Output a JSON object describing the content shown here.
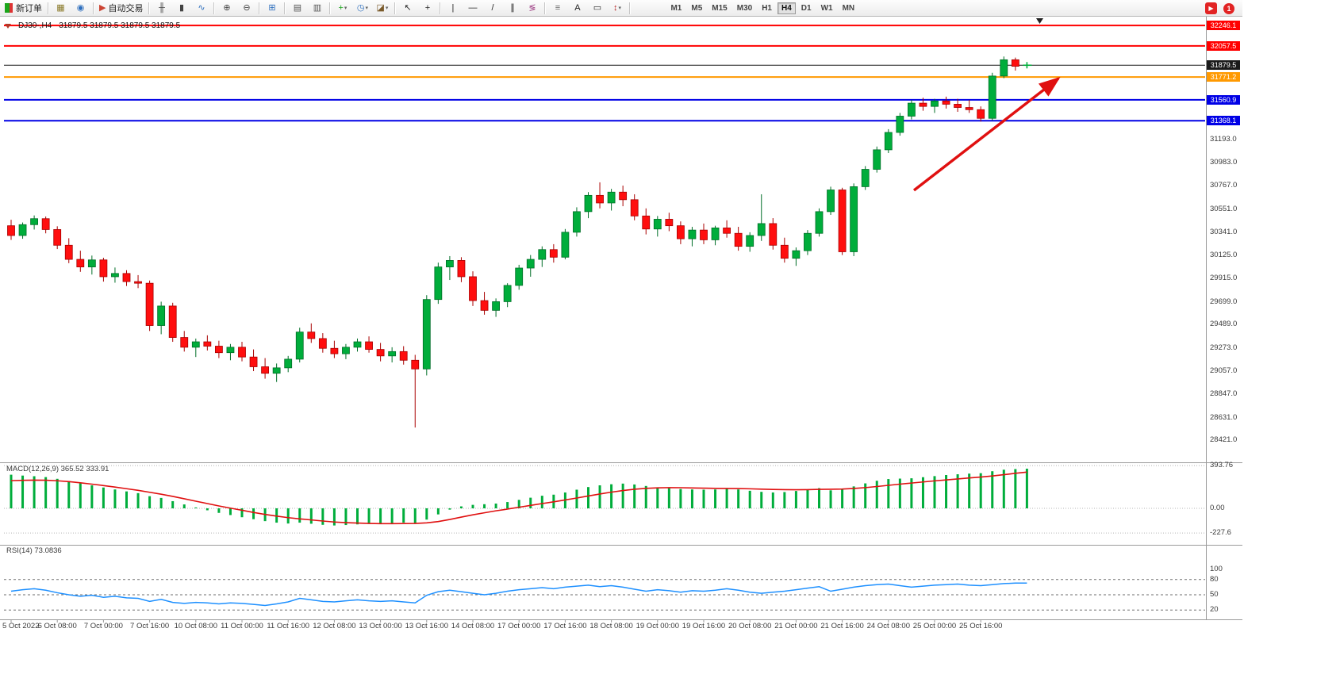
{
  "toolbar": {
    "groups": [
      {
        "items": [
          {
            "name": "new-order",
            "kind": "neworder",
            "label": "新订单"
          }
        ]
      },
      {
        "items": [
          {
            "name": "charts-grid",
            "glyph": "▦",
            "color": "#8a7a2a"
          },
          {
            "name": "alerts",
            "glyph": "◉",
            "color": "#2e6fbe"
          }
        ]
      },
      {
        "items": [
          {
            "name": "autotrade",
            "glyph": "▶",
            "color": "#cc4433",
            "label": "自动交易"
          }
        ]
      },
      {
        "items": [
          {
            "name": "bar-chart",
            "glyph": "╫",
            "color": "#444444"
          },
          {
            "name": "candlestick-chart",
            "glyph": "▮",
            "color": "#444444"
          },
          {
            "name": "line-chart",
            "glyph": "∿",
            "color": "#2e6fbe"
          }
        ]
      },
      {
        "items": [
          {
            "name": "zoom-in",
            "glyph": "⊕",
            "color": "#444444"
          },
          {
            "name": "zoom-out",
            "glyph": "⊖",
            "color": "#444444"
          }
        ]
      },
      {
        "items": [
          {
            "name": "tile-windows",
            "glyph": "⊞",
            "color": "#2e6fbe"
          }
        ]
      },
      {
        "items": [
          {
            "name": "auto-arrange",
            "glyph": "▤",
            "color": "#555555"
          },
          {
            "name": "track-chart",
            "glyph": "▥",
            "color": "#555555"
          }
        ]
      },
      {
        "items": [
          {
            "name": "indicators",
            "glyph": "+",
            "color": "#1ba51b",
            "dropdown": true
          },
          {
            "name": "periods",
            "glyph": "◷",
            "color": "#2e6fbe",
            "dropdown": true
          },
          {
            "name": "templates",
            "glyph": "◪",
            "color": "#7a5a2a",
            "dropdown": true
          }
        ]
      },
      {
        "items": [
          {
            "name": "cursor",
            "glyph": "↖",
            "color": "#222222"
          },
          {
            "name": "crosshair",
            "glyph": "+",
            "color": "#222222"
          }
        ]
      },
      {
        "items": [
          {
            "name": "vertical-line",
            "glyph": "|",
            "color": "#222222"
          },
          {
            "name": "horizontal-line",
            "glyph": "—",
            "color": "#222222"
          },
          {
            "name": "trendline",
            "glyph": "/",
            "color": "#222222"
          },
          {
            "name": "equidistant-channel",
            "glyph": "∥",
            "color": "#222222"
          },
          {
            "name": "fibonacci",
            "glyph": "≶",
            "color": "#a04488"
          }
        ]
      },
      {
        "items": [
          {
            "name": "shapes",
            "glyph": "≡",
            "color": "#666666"
          },
          {
            "name": "text",
            "glyph": "A",
            "color": "#222222"
          },
          {
            "name": "text-label",
            "glyph": "▭",
            "color": "#222222"
          },
          {
            "name": "arrows",
            "glyph": "↕",
            "color": "#b22222",
            "dropdown": true
          }
        ]
      }
    ],
    "timeframes": [
      {
        "label": "M1"
      },
      {
        "label": "M5"
      },
      {
        "label": "M15"
      },
      {
        "label": "M30"
      },
      {
        "label": "H1"
      },
      {
        "label": "H4",
        "active": true
      },
      {
        "label": "D1"
      },
      {
        "label": "W1"
      },
      {
        "label": "MN"
      }
    ],
    "right": {
      "promo_glyph": "▶",
      "notification_count": "1"
    }
  },
  "header": {
    "symbol_period": "DJ30-,H4",
    "ohlc": "31879.5 31879.5 31879.5 31879.5"
  },
  "chart_data": {
    "type": "candlestick",
    "symbol": "DJ30-",
    "period": "H4",
    "y_axis": {
      "badges": [
        {
          "value": "32246.1",
          "price": 32246.1,
          "color": "#ff0000"
        },
        {
          "value": "32057.5",
          "price": 32057.5,
          "color": "#ff0000"
        },
        {
          "value": "31879.5",
          "price": 31879.5,
          "color": "#1a1a1a"
        },
        {
          "value": "31771.2",
          "price": 31771.2,
          "color": "#ff9900"
        },
        {
          "value": "31560.9",
          "price": 31560.9,
          "color": "#0000e6"
        },
        {
          "value": "31368.1",
          "price": 31368.1,
          "color": "#0000e6"
        }
      ],
      "ticks": [
        "31193.0",
        "30983.0",
        "30767.0",
        "30551.0",
        "30341.0",
        "30125.0",
        "29915.0",
        "29699.0",
        "29489.0",
        "29273.0",
        "29057.0",
        "28847.0",
        "28631.0",
        "28421.0"
      ]
    },
    "hlines": [
      {
        "price": 32246.1,
        "color": "#ff0000",
        "w": 2
      },
      {
        "price": 32057.5,
        "color": "#ff0000",
        "w": 2
      },
      {
        "price": 31879.5,
        "color": "#1a1a1a",
        "w": 1
      },
      {
        "price": 31771.2,
        "color": "#ff9900",
        "w": 2
      },
      {
        "price": 31560.9,
        "color": "#0000e6",
        "w": 2
      },
      {
        "price": 31368.1,
        "color": "#0000e6",
        "w": 2
      }
    ],
    "x_labels": [
      "5 Oct 2022",
      "6 Oct 08:00",
      "7 Oct 00:00",
      "7 Oct 16:00",
      "10 Oct 08:00",
      "11 Oct 00:00",
      "11 Oct 16:00",
      "12 Oct 08:00",
      "13 Oct 00:00",
      "13 Oct 16:00",
      "14 Oct 08:00",
      "17 Oct 00:00",
      "17 Oct 16:00",
      "18 Oct 08:00",
      "19 Oct 00:00",
      "19 Oct 16:00",
      "20 Oct 08:00",
      "21 Oct 00:00",
      "21 Oct 16:00",
      "24 Oct 08:00",
      "25 Oct 00:00",
      "25 Oct 16:00"
    ],
    "candles": [
      [
        30400,
        30455,
        30270,
        30310
      ],
      [
        30310,
        30430,
        30280,
        30410
      ],
      [
        30410,
        30495,
        30365,
        30465
      ],
      [
        30465,
        30485,
        30330,
        30365
      ],
      [
        30365,
        30395,
        30185,
        30220
      ],
      [
        30220,
        30285,
        30055,
        30090
      ],
      [
        30090,
        30170,
        29975,
        30020
      ],
      [
        30020,
        30125,
        29950,
        30085
      ],
      [
        30085,
        30105,
        29885,
        29930
      ],
      [
        29930,
        30015,
        29875,
        29960
      ],
      [
        29960,
        29990,
        29845,
        29885
      ],
      [
        29885,
        29945,
        29825,
        29870
      ],
      [
        29870,
        29895,
        29430,
        29480
      ],
      [
        29480,
        29700,
        29400,
        29660
      ],
      [
        29660,
        29690,
        29330,
        29370
      ],
      [
        29370,
        29430,
        29240,
        29280
      ],
      [
        29280,
        29360,
        29190,
        29330
      ],
      [
        29330,
        29390,
        29250,
        29290
      ],
      [
        29290,
        29340,
        29180,
        29230
      ],
      [
        29230,
        29310,
        29160,
        29280
      ],
      [
        29280,
        29330,
        29150,
        29190
      ],
      [
        29190,
        29260,
        29060,
        29100
      ],
      [
        29100,
        29180,
        28990,
        29040
      ],
      [
        29040,
        29130,
        28960,
        29090
      ],
      [
        29090,
        29200,
        29050,
        29170
      ],
      [
        29170,
        29460,
        29140,
        29420
      ],
      [
        29420,
        29500,
        29320,
        29360
      ],
      [
        29360,
        29410,
        29230,
        29270
      ],
      [
        29270,
        29340,
        29180,
        29220
      ],
      [
        29220,
        29310,
        29170,
        29280
      ],
      [
        29280,
        29360,
        29240,
        29330
      ],
      [
        29330,
        29380,
        29230,
        29260
      ],
      [
        29260,
        29320,
        29150,
        29200
      ],
      [
        29200,
        29280,
        29140,
        29240
      ],
      [
        29240,
        29290,
        29120,
        29160
      ],
      [
        29160,
        29210,
        28540,
        29080
      ],
      [
        29080,
        29760,
        29020,
        29720
      ],
      [
        29720,
        30060,
        29680,
        30020
      ],
      [
        30020,
        30120,
        29900,
        30080
      ],
      [
        30080,
        30110,
        29880,
        29930
      ],
      [
        29930,
        29980,
        29660,
        29710
      ],
      [
        29710,
        29790,
        29580,
        29620
      ],
      [
        29620,
        29730,
        29560,
        29700
      ],
      [
        29700,
        29870,
        29650,
        29850
      ],
      [
        29850,
        30040,
        29810,
        30010
      ],
      [
        30010,
        30130,
        29930,
        30090
      ],
      [
        30090,
        30210,
        30020,
        30180
      ],
      [
        30180,
        30230,
        30060,
        30110
      ],
      [
        30110,
        30370,
        30090,
        30340
      ],
      [
        30340,
        30570,
        30300,
        30530
      ],
      [
        30530,
        30710,
        30470,
        30680
      ],
      [
        30680,
        30800,
        30560,
        30610
      ],
      [
        30610,
        30740,
        30540,
        30710
      ],
      [
        30710,
        30770,
        30580,
        30640
      ],
      [
        30640,
        30690,
        30450,
        30490
      ],
      [
        30490,
        30560,
        30320,
        30370
      ],
      [
        30370,
        30490,
        30300,
        30460
      ],
      [
        30460,
        30520,
        30350,
        30400
      ],
      [
        30400,
        30440,
        30230,
        30280
      ],
      [
        30280,
        30390,
        30210,
        30360
      ],
      [
        30360,
        30420,
        30230,
        30270
      ],
      [
        30270,
        30400,
        30220,
        30380
      ],
      [
        30380,
        30450,
        30290,
        30330
      ],
      [
        30330,
        30390,
        30170,
        30210
      ],
      [
        30210,
        30340,
        30160,
        30310
      ],
      [
        30310,
        30690,
        30260,
        30420
      ],
      [
        30420,
        30470,
        30180,
        30220
      ],
      [
        30220,
        30290,
        30060,
        30100
      ],
      [
        30100,
        30200,
        30030,
        30170
      ],
      [
        30170,
        30360,
        30130,
        30330
      ],
      [
        30330,
        30560,
        30300,
        30530
      ],
      [
        30530,
        30760,
        30500,
        30730
      ],
      [
        30730,
        30750,
        30130,
        30160
      ],
      [
        30160,
        30790,
        30120,
        30760
      ],
      [
        30760,
        30950,
        30730,
        30920
      ],
      [
        30920,
        31130,
        30890,
        31100
      ],
      [
        31100,
        31290,
        31070,
        31260
      ],
      [
        31260,
        31440,
        31230,
        31410
      ],
      [
        31410,
        31560,
        31380,
        31530
      ],
      [
        31530,
        31580,
        31460,
        31500
      ],
      [
        31500,
        31570,
        31440,
        31550
      ],
      [
        31550,
        31590,
        31480,
        31520
      ],
      [
        31520,
        31570,
        31450,
        31490
      ],
      [
        31490,
        31560,
        31440,
        31470
      ],
      [
        31470,
        31500,
        31360,
        31390
      ],
      [
        31390,
        31810,
        31370,
        31780
      ],
      [
        31780,
        31960,
        31760,
        31930
      ],
      [
        31930,
        31950,
        31830,
        31870
      ],
      [
        31879.5,
        31879.5,
        31879.5,
        31879.5
      ]
    ],
    "macd": {
      "label": "MACD(12,26,9) 365.52 333.91",
      "axis": [
        {
          "t": "393.76",
          "v": 393.76
        },
        {
          "t": "0.00",
          "v": 0
        },
        {
          "t": "-227.6",
          "v": -227.6
        }
      ],
      "histogram": [
        310,
        302,
        296,
        288,
        272,
        252,
        230,
        212,
        192,
        174,
        156,
        140,
        112,
        96,
        66,
        36,
        8,
        -18,
        -42,
        -62,
        -82,
        -100,
        -118,
        -132,
        -140,
        -132,
        -142,
        -152,
        -158,
        -154,
        -148,
        -144,
        -142,
        -136,
        -132,
        -140,
        -104,
        -56,
        -12,
        18,
        32,
        38,
        44,
        58,
        78,
        98,
        116,
        126,
        146,
        172,
        196,
        212,
        222,
        228,
        220,
        206,
        194,
        186,
        178,
        174,
        172,
        174,
        180,
        174,
        162,
        152,
        146,
        150,
        160,
        172,
        186,
        166,
        178,
        202,
        230,
        254,
        270,
        274,
        277,
        287,
        297,
        307,
        314,
        320,
        324,
        342,
        356,
        362,
        365.52
      ],
      "signal": [
        255,
        258,
        260,
        259,
        254,
        246,
        235,
        223,
        210,
        196,
        181,
        166,
        148,
        130,
        110,
        88,
        66,
        44,
        22,
        2,
        -18,
        -38,
        -56,
        -72,
        -86,
        -97,
        -107,
        -117,
        -126,
        -132,
        -136,
        -139,
        -141,
        -141,
        -140,
        -139,
        -134,
        -122,
        -103,
        -81,
        -60,
        -41,
        -23,
        -7,
        10,
        27,
        44,
        60,
        77,
        95,
        114,
        132,
        149,
        164,
        176,
        184,
        189,
        191,
        190,
        188,
        186,
        184,
        183,
        182,
        180,
        177,
        174,
        172,
        171,
        172,
        175,
        176,
        178,
        183,
        191,
        201,
        212,
        223,
        233,
        243,
        253,
        262,
        271,
        280,
        288,
        298,
        310,
        323,
        333.91
      ]
    },
    "rsi": {
      "label": "RSI(14) 73.0836",
      "levels": [
        {
          "t": "100",
          "v": 100
        },
        {
          "t": "80",
          "v": 80
        },
        {
          "t": "50",
          "v": 50
        },
        {
          "t": "20",
          "v": 20
        }
      ],
      "dashed": [
        80,
        50,
        20
      ],
      "values": [
        57,
        60,
        62,
        59,
        54,
        50,
        47,
        49,
        45,
        47,
        44,
        43,
        37,
        41,
        35,
        33,
        35,
        34,
        32,
        34,
        33,
        31,
        29,
        32,
        36,
        43,
        40,
        37,
        36,
        38,
        40,
        38,
        37,
        38,
        36,
        34,
        49,
        56,
        59,
        56,
        53,
        50,
        53,
        57,
        60,
        62,
        64,
        62,
        65,
        67,
        69,
        66,
        68,
        65,
        61,
        57,
        60,
        58,
        55,
        58,
        57,
        59,
        62,
        59,
        55,
        53,
        55,
        57,
        60,
        63,
        66,
        57,
        61,
        65,
        68,
        70,
        71,
        68,
        65,
        67,
        69,
        70,
        71,
        69,
        68,
        70,
        72,
        73,
        73.0836
      ]
    },
    "annotations": [
      {
        "type": "arrow",
        "from": [
          1152,
          240
        ],
        "to": [
          1334,
          99
        ],
        "color": "#e01010"
      }
    ],
    "colors": {
      "up": "#00ad3b",
      "up_edge": "#006e27",
      "down": "#ff0e0e",
      "down_edge": "#a80000",
      "macd_hist": "#00ad3b",
      "macd_signal": "#e01010",
      "rsi_line": "#1e90ff"
    }
  }
}
